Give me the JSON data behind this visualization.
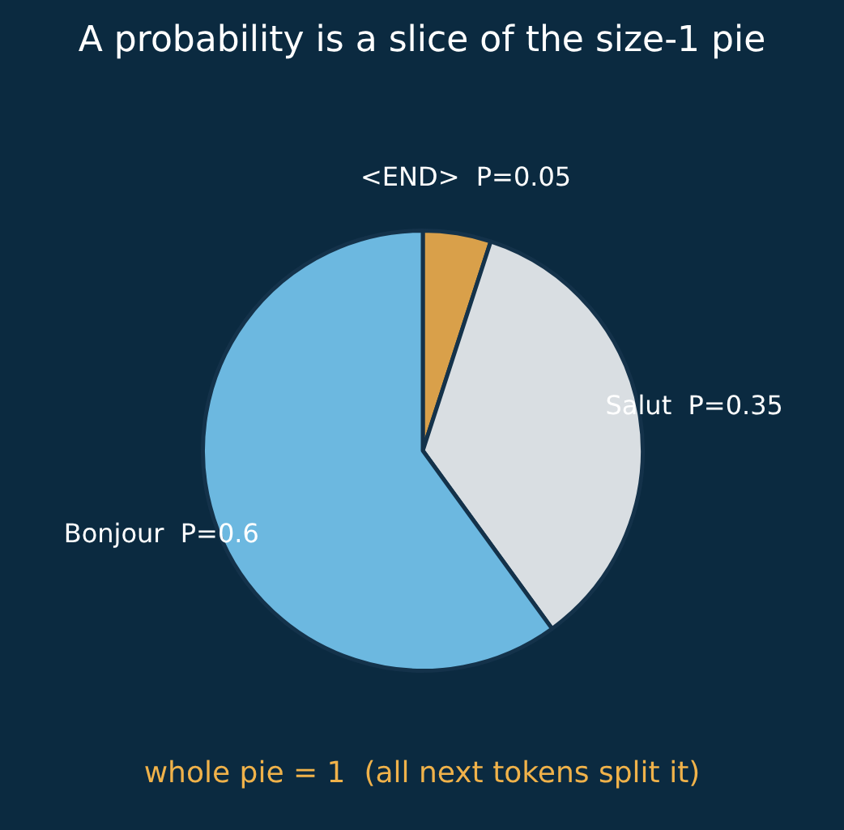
{
  "chart_data": {
    "type": "pie",
    "title": "A probability is a slice of the size-1 pie",
    "categories": [
      "<END>",
      "Salut",
      "Bonjour"
    ],
    "values": [
      0.05,
      0.35,
      0.6
    ],
    "value_labels": [
      "P=0.05",
      "P=0.35",
      "P=0.6"
    ],
    "colors": [
      "#d9a04a",
      "#d9dee2",
      "#6cb8e0"
    ],
    "legend": false,
    "annotations": [
      "whole pie = 1  (all next tokens split it)"
    ]
  }
}
